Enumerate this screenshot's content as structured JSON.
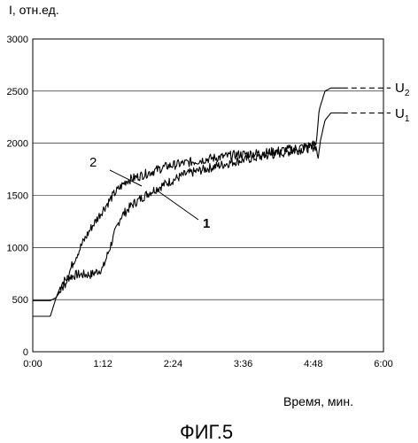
{
  "chart_data": {
    "type": "line",
    "title": "",
    "ylabel": "I, отн.ед.",
    "xlabel": "Время, мин.",
    "figure_caption": "ФИГ.5",
    "x_ticks": [
      "0:00",
      "1:12",
      "2:24",
      "3:36",
      "4:48",
      "6:00"
    ],
    "y_ticks": [
      0,
      500,
      1000,
      1500,
      2000,
      2500,
      3000
    ],
    "xlim_minutes": [
      0,
      6
    ],
    "ylim": [
      0,
      3000
    ],
    "grid": "horizontal",
    "series": [
      {
        "label": "1",
        "x_minutes": [
          0,
          0.3,
          0.4,
          0.5,
          0.6,
          0.75,
          1.0,
          1.2,
          1.35,
          1.5,
          1.7,
          2.0,
          2.3,
          2.6,
          3.0,
          3.5,
          4.0,
          4.5,
          4.85,
          4.88,
          4.92,
          5.0,
          5.1,
          5.3,
          6.0
        ],
        "values": [
          340,
          340,
          520,
          660,
          710,
          740,
          740,
          800,
          1050,
          1290,
          1410,
          1530,
          1620,
          1700,
          1760,
          1830,
          1880,
          1930,
          1970,
          1840,
          2020,
          2220,
          2290,
          2290,
          2290
        ]
      },
      {
        "label": "2",
        "x_minutes": [
          0,
          0.3,
          0.4,
          0.55,
          0.7,
          0.85,
          1.0,
          1.2,
          1.4,
          1.6,
          1.8,
          2.0,
          2.3,
          2.6,
          3.0,
          3.5,
          4.0,
          4.5,
          4.85,
          4.9,
          5.0,
          5.1,
          5.3,
          6.0
        ],
        "values": [
          490,
          490,
          520,
          650,
          870,
          1040,
          1190,
          1360,
          1520,
          1640,
          1680,
          1720,
          1780,
          1810,
          1850,
          1890,
          1910,
          1950,
          1990,
          2320,
          2500,
          2530,
          2530,
          2530
        ]
      }
    ],
    "end_labels": [
      {
        "base": "U",
        "sub": "2"
      },
      {
        "base": "U",
        "sub": "1"
      }
    ]
  }
}
